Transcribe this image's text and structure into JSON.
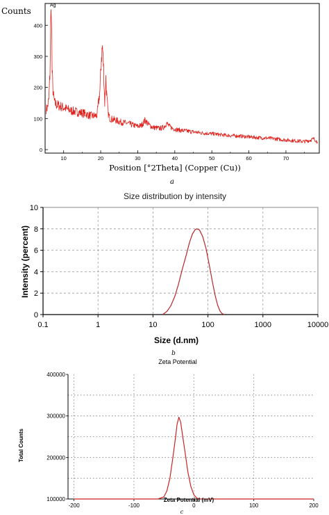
{
  "chart_data": [
    {
      "panel_label": "a",
      "type": "line",
      "title": "",
      "ylabel": "Counts",
      "xlabel": "Position [°2Theta] (Copper (Cu))",
      "xlim": [
        5,
        79
      ],
      "ylim": [
        0,
        470
      ],
      "x_ticks": [
        10,
        20,
        30,
        40,
        50,
        60,
        70
      ],
      "y_ticks": [
        0,
        100,
        200,
        300,
        400
      ],
      "grid": false,
      "series_color": "#e0201b",
      "annotations": [
        {
          "text": "Ag",
          "x": 6.5,
          "y": 460
        }
      ],
      "series": [
        {
          "x": [
            5.3,
            5.6,
            6.0,
            6.3,
            6.5,
            6.7,
            6.9,
            7.2,
            7.6,
            8.0,
            9.0,
            10.0,
            11.0,
            12.0,
            13.0,
            14.0,
            15.0,
            16.0,
            17.0,
            18.0,
            19.0,
            19.8,
            20.2,
            20.5,
            20.8,
            21.1,
            21.4,
            21.7,
            22.0,
            22.3,
            22.6,
            23.0,
            24.0,
            25.0,
            26.0,
            27.0,
            28.0,
            29.0,
            30.0,
            31.0,
            32.0,
            33.0,
            34.0,
            35.0,
            36.0,
            37.0,
            37.8,
            38.5,
            39.5,
            41.0,
            43.0,
            45.0,
            47.0,
            49.0,
            51.0,
            53.0,
            55.0,
            57.0,
            59.0,
            61.0,
            63.0,
            65.0,
            67.0,
            69.0,
            71.0,
            73.0,
            75.0,
            76.5,
            77.5,
            78.5
          ],
          "y": [
            130,
            135,
            160,
            240,
            400,
            460,
            250,
            175,
            150,
            145,
            140,
            135,
            130,
            125,
            123,
            120,
            118,
            115,
            110,
            108,
            110,
            190,
            300,
            330,
            260,
            150,
            230,
            160,
            120,
            105,
            100,
            98,
            95,
            90,
            87,
            85,
            82,
            78,
            75,
            78,
            95,
            80,
            72,
            70,
            68,
            72,
            85,
            75,
            68,
            63,
            60,
            57,
            54,
            52,
            50,
            47,
            45,
            44,
            42,
            40,
            38,
            37,
            35,
            32,
            30,
            28,
            26,
            30,
            35,
            25
          ]
        }
      ]
    },
    {
      "panel_label": "b",
      "type": "line",
      "title": "Size distribution by intensity",
      "xlabel": "Size (d.nm)",
      "ylabel": "Intensity (percent)",
      "x_scale": "log",
      "xlim": [
        0.1,
        10000
      ],
      "ylim": [
        0,
        10
      ],
      "x_ticks": [
        "0.1",
        "1",
        "10",
        "100",
        "1000",
        "10000"
      ],
      "y_ticks": [
        0,
        2,
        4,
        6,
        8,
        10
      ],
      "grid": true,
      "series_color": "#b8262a",
      "series": [
        {
          "x": [
            15,
            18,
            21,
            25,
            29,
            34,
            40,
            46,
            52,
            58,
            62,
            70,
            80,
            92,
            105,
            120,
            135,
            150,
            165,
            180,
            200
          ],
          "y": [
            0,
            0.3,
            0.8,
            1.7,
            2.8,
            4.2,
            5.5,
            6.7,
            7.5,
            7.9,
            8.0,
            7.9,
            7.3,
            6.2,
            4.7,
            3.1,
            1.8,
            0.9,
            0.35,
            0.1,
            0
          ]
        }
      ]
    },
    {
      "panel_label": "c",
      "type": "line",
      "title": "Zeta Potential",
      "xlabel": "Zeta Potential (mV)",
      "ylabel": "Total Counts",
      "xlim": [
        -200,
        200
      ],
      "ylim": [
        100000,
        400000
      ],
      "x_ticks": [
        -200,
        -100,
        0,
        100,
        200
      ],
      "y_ticks": [
        100000,
        200000,
        300000,
        400000
      ],
      "grid": true,
      "series_color": "#cc2222",
      "series": [
        {
          "x": [
            -200,
            -140,
            -100,
            -60,
            -50,
            -45,
            -40,
            -35,
            -30,
            -28,
            -25,
            -22,
            -20,
            -15,
            -10,
            -5,
            0,
            5,
            10,
            20,
            60,
            100,
            140,
            200
          ],
          "y": [
            100000,
            100000,
            100000,
            100000,
            105000,
            120000,
            150000,
            200000,
            255000,
            280000,
            297000,
            285000,
            265000,
            215000,
            165000,
            130000,
            110000,
            102000,
            100000,
            100000,
            100000,
            100000,
            100000,
            100000
          ]
        }
      ]
    }
  ]
}
